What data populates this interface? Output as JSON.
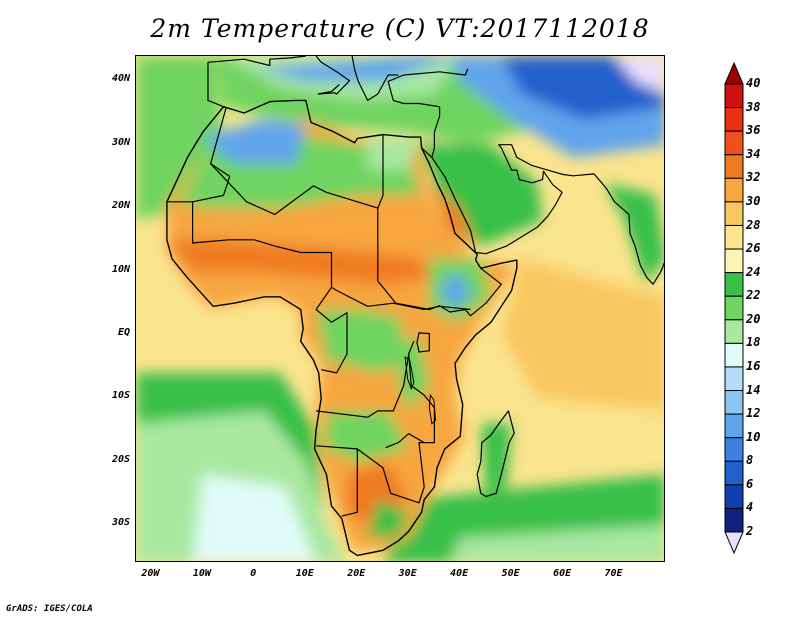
{
  "title": "2m Temperature (C) VT:2017112018",
  "credit": "GrADS: IGES/COLA",
  "map": {
    "lon_range": [
      -23,
      80
    ],
    "lat_range": [
      -36,
      44
    ],
    "lat_labels": [
      "40N",
      "30N",
      "20N",
      "10N",
      "EQ",
      "10S",
      "20S",
      "30S"
    ],
    "lat_values": [
      40,
      30,
      20,
      10,
      0,
      -10,
      -20,
      -30
    ],
    "lon_labels": [
      "20W",
      "10W",
      "0",
      "10E",
      "20E",
      "30E",
      "40E",
      "50E",
      "60E",
      "70E"
    ],
    "lon_values": [
      -20,
      -10,
      0,
      10,
      20,
      30,
      40,
      50,
      60,
      70
    ]
  },
  "colorbar": {
    "labels": [
      "40",
      "38",
      "36",
      "34",
      "32",
      "30",
      "28",
      "26",
      "24",
      "22",
      "20",
      "18",
      "16",
      "14",
      "12",
      "10",
      "8",
      "6",
      "4",
      "2"
    ],
    "colors": [
      "#a00000",
      "#d01010",
      "#e83010",
      "#f05020",
      "#f07a20",
      "#f7a640",
      "#f8c860",
      "#fbe48e",
      "#fcf4b4",
      "#38c048",
      "#70d460",
      "#a8e8a0",
      "#e0fcf8",
      "#b4dcf8",
      "#8cc4f4",
      "#60a4ec",
      "#3c80e0",
      "#2060cc",
      "#1040b0",
      "#102080",
      "#e8e0ff"
    ]
  },
  "field_colors": {
    "sea_warm": "#fbe48e",
    "sea_hot": "#f8c860",
    "sea_cool": "#a8e8a0",
    "sea_cold": "#e0fcf8",
    "land_green": "#38c048",
    "land_light_green": "#70d460",
    "land_orange": "#f7a640",
    "land_hot": "#f07a20",
    "land_cold": "#60a4ec",
    "land_deep_cold": "#2060cc",
    "pale": "#e8e0ff",
    "border": "#000000"
  }
}
